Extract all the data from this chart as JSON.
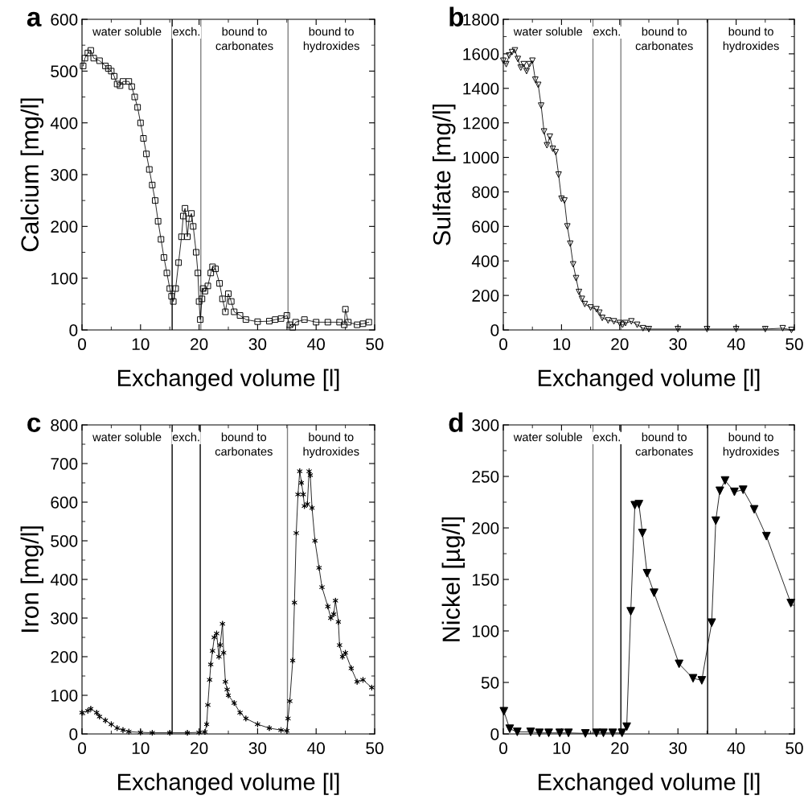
{
  "chart_data": [
    {
      "type": "line",
      "title": "a",
      "xlabel": "Exchanged volume [l]",
      "ylabel": "Calcium [mg/l]",
      "xlim": [
        0,
        50
      ],
      "xticks": [
        0,
        10,
        20,
        30,
        40,
        50
      ],
      "ylim": [
        0,
        600
      ],
      "yticks": [
        0,
        100,
        200,
        300,
        400,
        500,
        600
      ],
      "marker": "square",
      "line_style": "solid",
      "series": [
        {
          "color": "#000000",
          "x": [
            0.2,
            0.5,
            1,
            1.5,
            2,
            3,
            4,
            4.5,
            5,
            5.5,
            6,
            6.5,
            7,
            8,
            8.5,
            9,
            9.5,
            10,
            10.5,
            11,
            11.5,
            12,
            12.5,
            13,
            13.5,
            14,
            14.5,
            15,
            15.3,
            15.6,
            16,
            16.5,
            17,
            17.3,
            17.6,
            18,
            18.3,
            18.7,
            19,
            19.5,
            19.8,
            20,
            20.2,
            20.5,
            20.7,
            21,
            21.5,
            22,
            22.3,
            22.8,
            23.5,
            24,
            24.5,
            25,
            25.5,
            26,
            27,
            28,
            30,
            32,
            33,
            34,
            35,
            35.5,
            36,
            36.5,
            38,
            40,
            42,
            44,
            44.8,
            45,
            45.5,
            47,
            48,
            49
          ],
          "values": [
            510,
            525,
            535,
            540,
            525,
            520,
            510,
            505,
            500,
            490,
            475,
            472,
            480,
            480,
            470,
            450,
            430,
            400,
            370,
            340,
            310,
            280,
            250,
            210,
            175,
            140,
            110,
            80,
            65,
            55,
            80,
            130,
            180,
            220,
            235,
            180,
            215,
            225,
            200,
            150,
            110,
            55,
            20,
            60,
            80,
            75,
            85,
            110,
            122,
            118,
            90,
            60,
            35,
            70,
            55,
            35,
            28,
            20,
            16,
            17,
            20,
            22,
            28,
            10,
            5,
            15,
            20,
            15,
            15,
            15,
            10,
            40,
            15,
            10,
            12,
            15
          ]
        }
      ],
      "ref_lines": [
        {
          "axis": "x",
          "value": 15.4,
          "color": "#000000"
        },
        {
          "axis": "x",
          "value": 20.3,
          "color": "#808080"
        },
        {
          "axis": "x",
          "value": 35.2,
          "color": "#808080"
        }
      ],
      "annotations": [
        "water soluble",
        "exch.",
        "bound to\ncarbonates",
        "bound to\nhydroxides"
      ]
    },
    {
      "type": "line",
      "title": "b",
      "xlabel": "Exchanged volume [l]",
      "ylabel": "Sulfate [mg/l]",
      "xlim": [
        0,
        50
      ],
      "xticks": [
        0,
        10,
        20,
        30,
        40,
        50
      ],
      "ylim": [
        0,
        1800
      ],
      "yticks": [
        0,
        200,
        400,
        600,
        800,
        1000,
        1200,
        1400,
        1600,
        1800
      ],
      "marker": "triangle",
      "line_style": "solid",
      "series": [
        {
          "color": "#000000",
          "x": [
            0,
            0.5,
            1,
            1.5,
            2,
            2.5,
            3,
            3.5,
            4,
            4.5,
            5,
            5.5,
            6,
            6.5,
            7,
            7.5,
            8,
            8.5,
            9,
            9.5,
            10,
            10.5,
            11,
            11.5,
            12,
            12.5,
            13,
            13.5,
            14,
            15,
            16,
            16.5,
            17,
            18,
            19,
            20,
            20.5,
            21,
            22,
            23,
            24,
            25,
            30,
            35,
            40,
            45,
            48,
            49.5
          ],
          "values": [
            1560,
            1540,
            1590,
            1610,
            1620,
            1570,
            1520,
            1540,
            1500,
            1540,
            1560,
            1450,
            1420,
            1300,
            1150,
            1070,
            1120,
            1050,
            1030,
            900,
            760,
            750,
            600,
            500,
            380,
            300,
            220,
            180,
            150,
            130,
            120,
            100,
            70,
            55,
            50,
            40,
            30,
            40,
            50,
            30,
            10,
            5,
            5,
            5,
            5,
            5,
            10,
            0
          ]
        }
      ],
      "ref_lines": [
        {
          "axis": "x",
          "value": 15.4,
          "color": "#808080"
        },
        {
          "axis": "x",
          "value": 20.2,
          "color": "#808080"
        },
        {
          "axis": "x",
          "value": 35.1,
          "color": "#000000"
        }
      ],
      "annotations": [
        "water soluble",
        "exch.",
        "bound to\ncarbonates",
        "bound to\nhydroxides"
      ]
    },
    {
      "type": "line",
      "title": "c",
      "xlabel": "Exchanged volume [l]",
      "ylabel": "Iron [mg/l]",
      "xlim": [
        0,
        50
      ],
      "xticks": [
        0,
        10,
        20,
        30,
        40,
        50
      ],
      "ylim": [
        0,
        800
      ],
      "yticks": [
        0,
        100,
        200,
        300,
        400,
        500,
        600,
        700,
        800
      ],
      "marker": "cross",
      "line_style": "solid",
      "series": [
        {
          "color": "#000000",
          "x": [
            0,
            1,
            1.5,
            2.5,
            3,
            4,
            5,
            6,
            7,
            8,
            10,
            12,
            15,
            18,
            20,
            21,
            21.3,
            21.5,
            21.8,
            22,
            22.3,
            22.6,
            23,
            23.4,
            23.6,
            24,
            24.2,
            24.5,
            24.8,
            25,
            26,
            27,
            28,
            30,
            32,
            34,
            35,
            35.2,
            35.5,
            36,
            36.3,
            36.6,
            36.9,
            37.2,
            37.5,
            37.8,
            38,
            38.5,
            38.8,
            39,
            39.3,
            39.8,
            40.5,
            41,
            42,
            42.5,
            43,
            43.3,
            43.8,
            44,
            44.5,
            45,
            46,
            47,
            48,
            49.5
          ],
          "values": [
            55,
            60,
            65,
            55,
            45,
            35,
            25,
            15,
            10,
            6,
            4,
            3,
            3,
            3,
            4,
            5,
            25,
            75,
            140,
            180,
            215,
            250,
            260,
            200,
            230,
            285,
            210,
            135,
            115,
            100,
            80,
            55,
            40,
            25,
            15,
            10,
            8,
            40,
            85,
            190,
            340,
            520,
            620,
            680,
            650,
            620,
            590,
            595,
            680,
            670,
            585,
            500,
            430,
            380,
            330,
            300,
            310,
            345,
            290,
            230,
            200,
            210,
            170,
            135,
            140,
            120
          ]
        }
      ],
      "ref_lines": [
        {
          "axis": "x",
          "value": 15.4,
          "color": "#000000"
        },
        {
          "axis": "x",
          "value": 20.2,
          "color": "#000000"
        },
        {
          "axis": "x",
          "value": 35.1,
          "color": "#808080"
        }
      ],
      "annotations": [
        "water soluble",
        "exch.",
        "bound to\ncarbonates",
        "bound to\nhydroxides"
      ]
    },
    {
      "type": "line",
      "title": "d",
      "xlabel": "Exchanged volume [l]",
      "ylabel": "Nickel [µg/l]",
      "xlim": [
        0,
        50
      ],
      "xticks": [
        0,
        10,
        20,
        30,
        40,
        50
      ],
      "ylim": [
        0,
        300
      ],
      "yticks": [
        0,
        50,
        100,
        150,
        200,
        250,
        300
      ],
      "marker": "triangle",
      "line_style": "solid",
      "series": [
        {
          "color": "#000000",
          "x": [
            0.1,
            1.1,
            2.4,
            4.7,
            6.2,
            7.8,
            9.7,
            11.2,
            14.1,
            16,
            17.2,
            18.8,
            20.4,
            21.2,
            21.9,
            22.6,
            23.3,
            23.9,
            24.7,
            25.9,
            30.2,
            32.6,
            34.1,
            35.8,
            36.5,
            37.2,
            38.1,
            39.7,
            41.2,
            43.1,
            45.2,
            49.4
          ],
          "values": [
            22,
            5,
            2,
            2,
            1,
            1,
            1,
            1,
            0.5,
            1,
            1,
            1,
            1,
            7,
            119,
            222,
            223,
            195,
            156,
            137,
            68,
            54,
            52,
            108,
            207,
            236,
            246,
            235,
            237,
            218,
            192,
            127
          ]
        }
      ],
      "ref_lines": [
        {
          "axis": "x",
          "value": 15.4,
          "color": "#808080"
        },
        {
          "axis": "x",
          "value": 20.2,
          "color": "#000000"
        },
        {
          "axis": "x",
          "value": 35.1,
          "color": "#000000"
        }
      ],
      "annotations": [
        "water soluble",
        "exch.",
        "bound to\ncarbonates",
        "bound to\nhydroxides"
      ]
    }
  ]
}
